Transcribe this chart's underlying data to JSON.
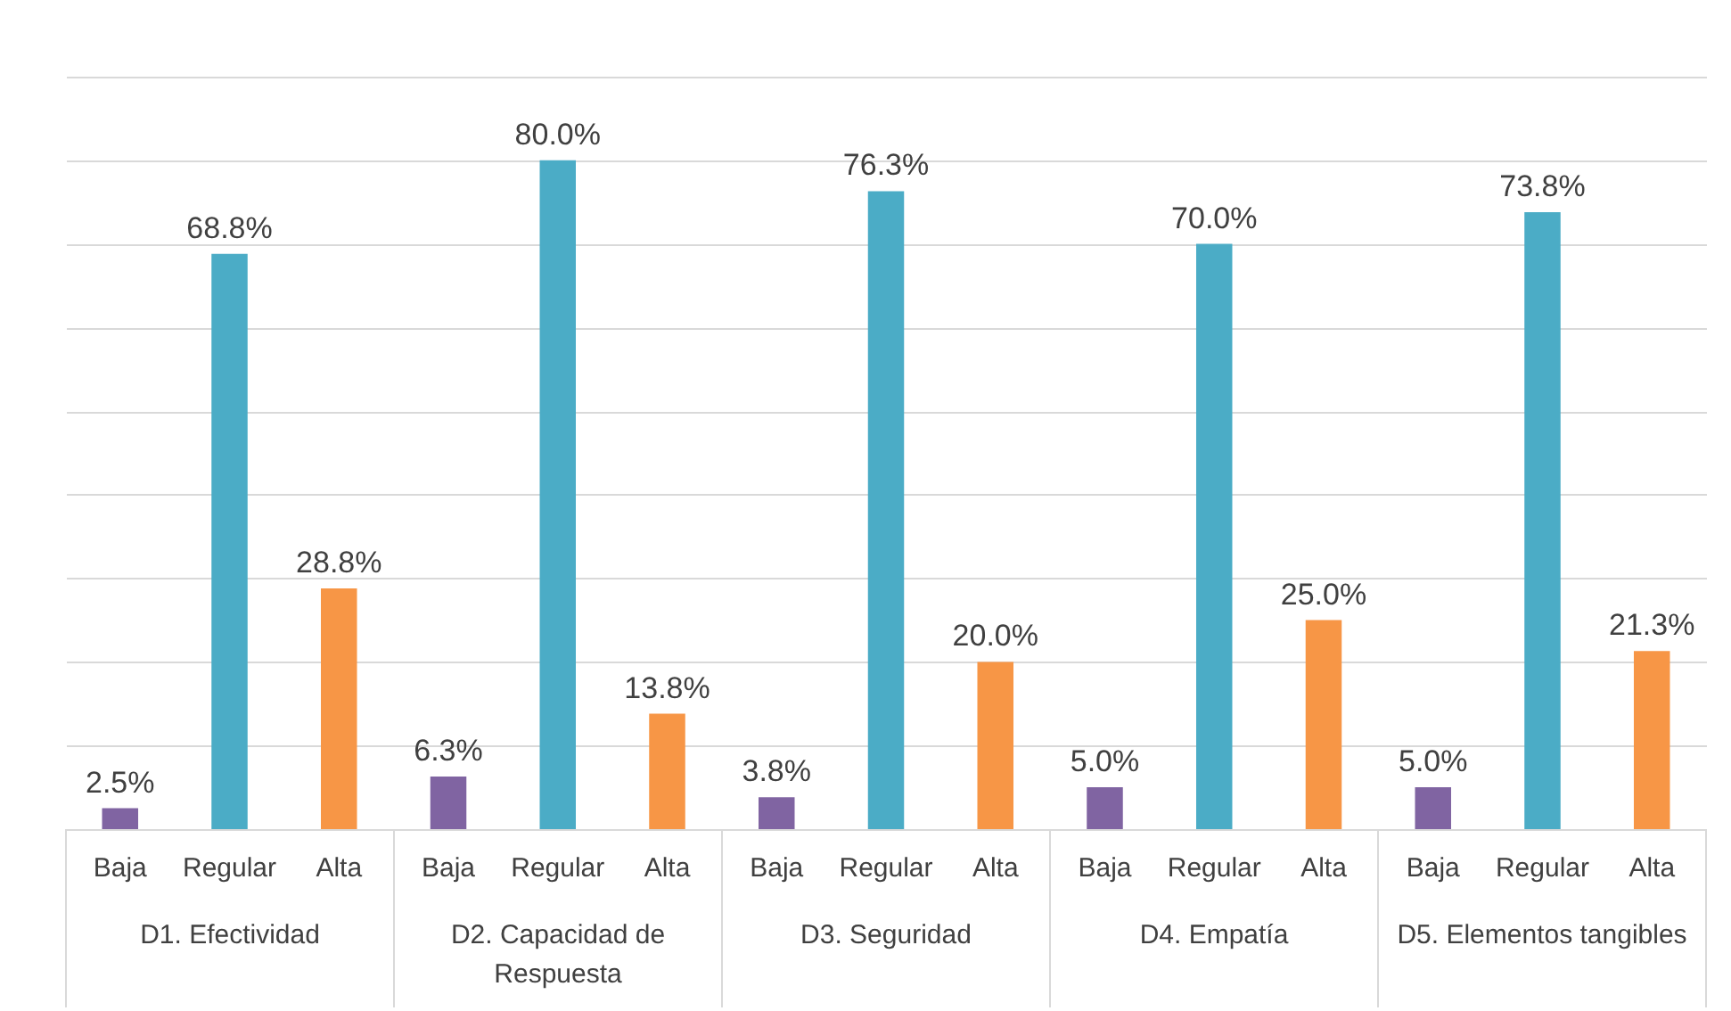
{
  "chart_data": {
    "type": "bar",
    "categories": [
      "Baja",
      "Regular",
      "Alta",
      "Baja",
      "Regular",
      "Alta",
      "Baja",
      "Regular",
      "Alta",
      "Baja",
      "Regular",
      "Alta",
      "Baja",
      "Regular",
      "Alta"
    ],
    "values": [
      2.5,
      68.8,
      28.8,
      6.3,
      80.0,
      13.8,
      3.8,
      76.3,
      20.0,
      5.0,
      70.0,
      25.0,
      5.0,
      73.8,
      21.3
    ],
    "value_labels": [
      "2.5%",
      "68.8%",
      "28.8%",
      "6.3%",
      "80.0%",
      "13.8%",
      "3.8%",
      "76.3%",
      "20.0%",
      "5.0%",
      "70.0%",
      "25.0%",
      "5.0%",
      "73.8%",
      "21.3%"
    ],
    "colors": [
      "#8064a2",
      "#4bacc6",
      "#f79646",
      "#8064a2",
      "#4bacc6",
      "#f79646",
      "#8064a2",
      "#4bacc6",
      "#f79646",
      "#8064a2",
      "#4bacc6",
      "#f79646",
      "#8064a2",
      "#4bacc6",
      "#f79646"
    ],
    "annotations": [
      "D1. Efectividad",
      "D2. Capacidad de Respuesta",
      "D3. Seguridad",
      "D4. Empatía",
      "D5. Elementos tangibles"
    ],
    "relative": false,
    "ylim": [
      0,
      90
    ],
    "yticks": [
      {
        "value": 0,
        "label": null
      },
      {
        "value": 10,
        "label": null
      },
      {
        "value": 20,
        "label": null
      },
      {
        "value": 30,
        "label": null
      },
      {
        "value": 40,
        "label": null
      },
      {
        "value": 50,
        "label": null
      },
      {
        "value": 60,
        "label": null
      },
      {
        "value": 70,
        "label": null
      },
      {
        "value": 80,
        "label": null
      },
      {
        "value": 90,
        "label": null
      }
    ],
    "grid": "y",
    "tick_labels": "x"
  }
}
